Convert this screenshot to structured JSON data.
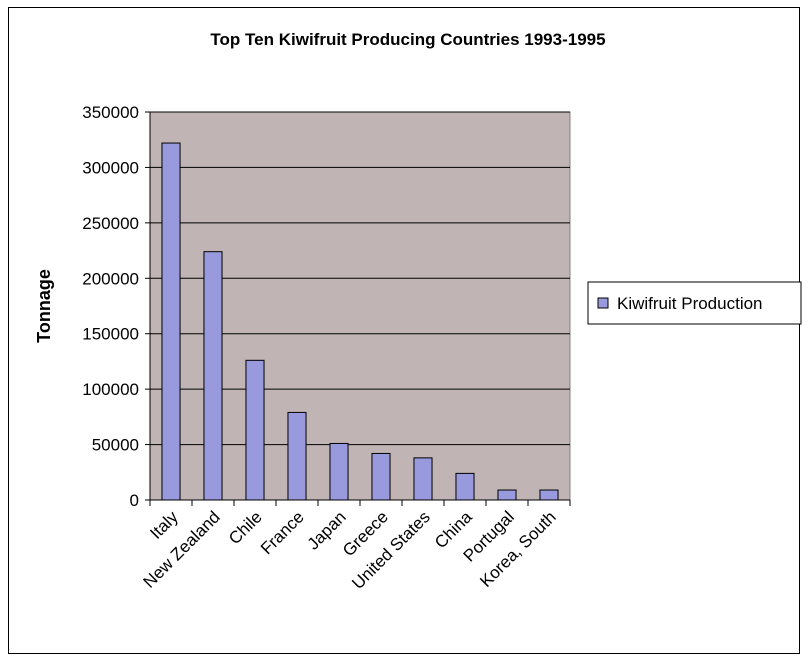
{
  "chart_data": {
    "type": "bar",
    "title": "Top Ten Kiwifruit Producing Countries 1993-1995",
    "xlabel": "",
    "ylabel": "Tonnage",
    "categories": [
      "Italy",
      "New Zealand",
      "Chile",
      "France",
      "Japan",
      "Greece",
      "United States",
      "China",
      "Portugal",
      "Korea, South"
    ],
    "series": [
      {
        "name": "Kiwifruit Production",
        "values": [
          322000,
          224000,
          126000,
          79000,
          51000,
          42000,
          38000,
          24000,
          9000,
          9000
        ]
      }
    ],
    "ylim": [
      0,
      350000
    ],
    "yticks": [
      0,
      50000,
      100000,
      150000,
      200000,
      250000,
      300000,
      350000
    ],
    "grid": true,
    "legend": "right",
    "colors": {
      "plot_background": "#c0b4b4",
      "bar_fill": "#9999dd",
      "bar_stroke": "#000000",
      "grid": "#000000"
    }
  }
}
